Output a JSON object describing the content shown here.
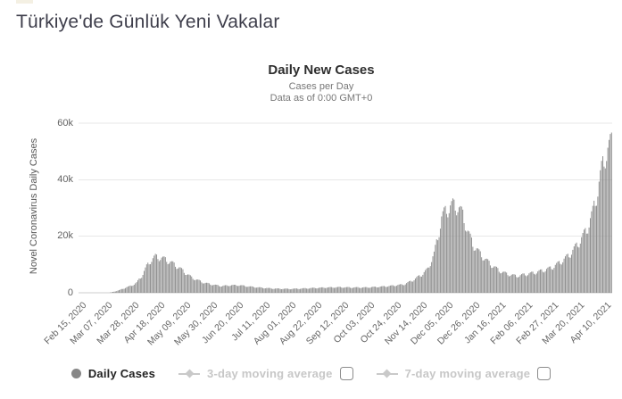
{
  "page": {
    "title": "Türkiye'de Günlük Yeni Vakalar"
  },
  "chart": {
    "title": "Daily New Cases",
    "subtitle1": "Cases per Day",
    "subtitle2": "Data as of 0:00 GMT+0",
    "y_axis_title": "Novel Coronavirus Daily Cases"
  },
  "legend": {
    "daily_cases_label": "Daily Cases",
    "avg3_label": "3-day moving average",
    "avg7_label": "7-day moving average"
  },
  "colors": {
    "bar": "#8f8f8f",
    "grid": "#e7e7e7",
    "axis": "#cccccc",
    "title_text": "#3e3e4b",
    "legend_active": "#222222",
    "legend_inactive": "#c7c7c7"
  },
  "chart_data": {
    "type": "bar",
    "title": "Daily New Cases",
    "subtitle": "Cases per Day — Data as of 0:00 GMT+0",
    "xlabel": "",
    "ylabel": "Novel Coronavirus Daily Cases",
    "ylim": [
      0,
      60000
    ],
    "grid": true,
    "legend_position": "bottom",
    "y_tick_values": [
      0,
      20000,
      40000,
      60000
    ],
    "y_tick_labels": [
      "0",
      "20k",
      "40k",
      "60k"
    ],
    "x_tick_interval_days": 21,
    "x_tick_labels": [
      "Feb 15, 2020",
      "Mar 07, 2020",
      "Mar 28, 2020",
      "Apr 18, 2020",
      "May 09, 2020",
      "May 30, 2020",
      "Jun 20, 2020",
      "Jul 11, 2020",
      "Aug 01, 2020",
      "Aug 22, 2020",
      "Sep 12, 2020",
      "Oct 03, 2020",
      "Oct 24, 2020",
      "Nov 14, 2020",
      "Dec 05, 2020",
      "Dec 26, 2020",
      "Jan 16, 2021",
      "Feb 06, 2021",
      "Feb 27, 2021",
      "Mar 20, 2021",
      "Apr 10, 2021"
    ],
    "start_date": "2020-02-15",
    "end_date": "2021-04-16",
    "series_name": "Daily Cases",
    "anchors": [
      [
        "2020-02-15",
        0
      ],
      [
        "2020-03-10",
        0
      ],
      [
        "2020-03-13",
        300
      ],
      [
        "2020-03-18",
        900
      ],
      [
        "2020-03-23",
        1800
      ],
      [
        "2020-03-28",
        2600
      ],
      [
        "2020-04-01",
        3600
      ],
      [
        "2020-04-05",
        6000
      ],
      [
        "2020-04-09",
        9500
      ],
      [
        "2020-04-12",
        11500
      ],
      [
        "2020-04-16",
        13000
      ],
      [
        "2020-04-20",
        12600
      ],
      [
        "2020-04-24",
        12000
      ],
      [
        "2020-04-30",
        10500
      ],
      [
        "2020-05-05",
        9000
      ],
      [
        "2020-05-10",
        7200
      ],
      [
        "2020-05-15",
        5500
      ],
      [
        "2020-05-20",
        4500
      ],
      [
        "2020-05-25",
        3600
      ],
      [
        "2020-06-01",
        2900
      ],
      [
        "2020-06-08",
        2400
      ],
      [
        "2020-06-15",
        2700
      ],
      [
        "2020-06-22",
        2700
      ],
      [
        "2020-07-01",
        2200
      ],
      [
        "2020-07-10",
        1800
      ],
      [
        "2020-07-20",
        1500
      ],
      [
        "2020-08-01",
        1400
      ],
      [
        "2020-08-10",
        1500
      ],
      [
        "2020-08-20",
        1700
      ],
      [
        "2020-09-01",
        1900
      ],
      [
        "2020-09-10",
        2000
      ],
      [
        "2020-09-20",
        1900
      ],
      [
        "2020-10-01",
        1900
      ],
      [
        "2020-10-10",
        2100
      ],
      [
        "2020-10-20",
        2400
      ],
      [
        "2020-11-01",
        3000
      ],
      [
        "2020-11-08",
        4500
      ],
      [
        "2020-11-15",
        6500
      ],
      [
        "2020-11-20",
        8500
      ],
      [
        "2020-11-25",
        14000
      ],
      [
        "2020-11-28",
        20000
      ],
      [
        "2020-12-01",
        27000
      ],
      [
        "2020-12-05",
        30000
      ],
      [
        "2020-12-10",
        31500
      ],
      [
        "2020-12-14",
        31000
      ],
      [
        "2020-12-18",
        28000
      ],
      [
        "2020-12-22",
        22000
      ],
      [
        "2020-12-26",
        17500
      ],
      [
        "2020-12-31",
        14500
      ],
      [
        "2021-01-05",
        12000
      ],
      [
        "2021-01-10",
        10000
      ],
      [
        "2021-01-16",
        8000
      ],
      [
        "2021-01-22",
        6800
      ],
      [
        "2021-01-30",
        6000
      ],
      [
        "2021-02-06",
        6600
      ],
      [
        "2021-02-13",
        7200
      ],
      [
        "2021-02-20",
        8000
      ],
      [
        "2021-02-27",
        9000
      ],
      [
        "2021-03-06",
        11000
      ],
      [
        "2021-03-13",
        13500
      ],
      [
        "2021-03-20",
        17500
      ],
      [
        "2021-03-27",
        22500
      ],
      [
        "2021-04-01",
        29000
      ],
      [
        "2021-04-05",
        37000
      ],
      [
        "2021-04-08",
        44000
      ],
      [
        "2021-04-11",
        50000
      ],
      [
        "2021-04-14",
        52000
      ],
      [
        "2021-04-16",
        54000
      ]
    ],
    "weekly_pattern": [
      0.93,
      0.88,
      0.92,
      1.0,
      1.04,
      1.06,
      1.05
    ]
  }
}
